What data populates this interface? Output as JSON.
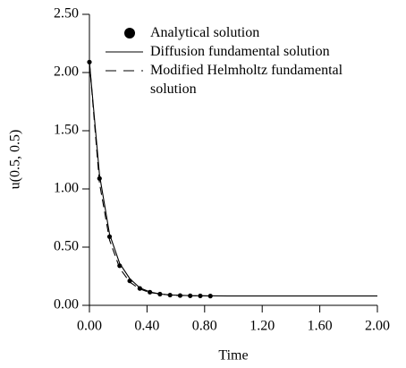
{
  "chart_data": {
    "type": "line",
    "xlabel": "Time",
    "ylabel": "u(0.5, 0.5)",
    "xlim": [
      0,
      2
    ],
    "ylim": [
      0,
      2.5
    ],
    "xticks": [
      {
        "value": 0,
        "label": "0.00"
      },
      {
        "value": 0.4,
        "label": "0.40"
      },
      {
        "value": 0.8,
        "label": "0.80"
      },
      {
        "value": 1.2,
        "label": "1.20"
      },
      {
        "value": 1.6,
        "label": "1.60"
      },
      {
        "value": 2,
        "label": "2.00"
      }
    ],
    "yticks": [
      {
        "value": 0,
        "label": "0.00"
      },
      {
        "value": 0.5,
        "label": "0.50"
      },
      {
        "value": 1,
        "label": "1.00"
      },
      {
        "value": 1.5,
        "label": "1.50"
      },
      {
        "value": 2,
        "label": "2.00"
      },
      {
        "value": 2.5,
        "label": "2.50"
      }
    ],
    "legend": "upper right",
    "series": [
      {
        "name": "Analytical solution",
        "color": "#000000",
        "style": "points",
        "x": [
          0,
          0.07,
          0.14,
          0.21,
          0.28,
          0.35,
          0.42,
          0.49,
          0.56,
          0.63,
          0.7,
          0.77,
          0.84
        ],
        "values": [
          2.09,
          1.09,
          0.59,
          0.34,
          0.21,
          0.145,
          0.113,
          0.096,
          0.088,
          0.084,
          0.082,
          0.081,
          0.08
        ]
      },
      {
        "name": "Diffusion fundamental solution",
        "color": "#000000",
        "style": "solid",
        "x": [
          0,
          0.07,
          0.14,
          0.21,
          0.28,
          0.35,
          0.42,
          0.49,
          0.56,
          0.7,
          0.84,
          1.0,
          1.4,
          2.0
        ],
        "values": [
          2.09,
          1.12,
          0.61,
          0.36,
          0.23,
          0.15,
          0.115,
          0.097,
          0.089,
          0.083,
          0.081,
          0.08,
          0.08,
          0.08
        ]
      },
      {
        "name": "Modified Helmholtz fundamental solution",
        "color": "#000000",
        "style": "dashed",
        "x": [
          0,
          0.07,
          0.14,
          0.21,
          0.28,
          0.35,
          0.42,
          0.56,
          0.7,
          0.84
        ],
        "values": [
          2.09,
          1.05,
          0.56,
          0.32,
          0.2,
          0.14,
          0.11,
          0.088,
          0.082,
          0.08
        ]
      }
    ]
  }
}
